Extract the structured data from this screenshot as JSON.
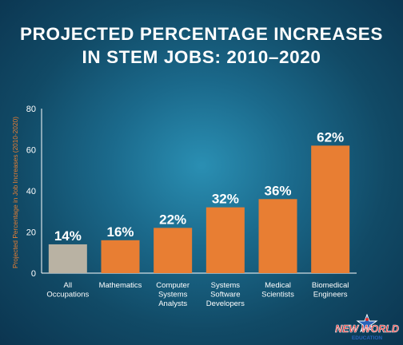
{
  "chart_data": {
    "type": "bar",
    "title_lines": [
      "PROJECTED PERCENTAGE INCREASES",
      "IN STEM JOBS: 2010–2020"
    ],
    "ylabel": "Projected Percentage in Job Increases (2010-2020)",
    "xlabel": "",
    "ylim": [
      0,
      80
    ],
    "yticks": [
      0,
      20,
      40,
      60,
      80
    ],
    "grid": false,
    "categories": [
      [
        "All",
        "Occupations"
      ],
      [
        "Mathematics"
      ],
      [
        "Computer",
        "Systems",
        "Analysts"
      ],
      [
        "Systems",
        "Software",
        "Developers"
      ],
      [
        "Medical",
        "Scientists"
      ],
      [
        "Biomedical",
        "Engineers"
      ]
    ],
    "values": [
      14,
      16,
      22,
      32,
      36,
      62
    ],
    "data_labels": [
      "14%",
      "16%",
      "22%",
      "32%",
      "36%",
      "62%"
    ],
    "bar_colors": [
      "#b9b2a3",
      "#e87e33",
      "#e87e33",
      "#e87e33",
      "#e87e33",
      "#e87e33"
    ]
  },
  "logo": {
    "line1": "NEW WORLD",
    "line2": "EDUCATION"
  }
}
